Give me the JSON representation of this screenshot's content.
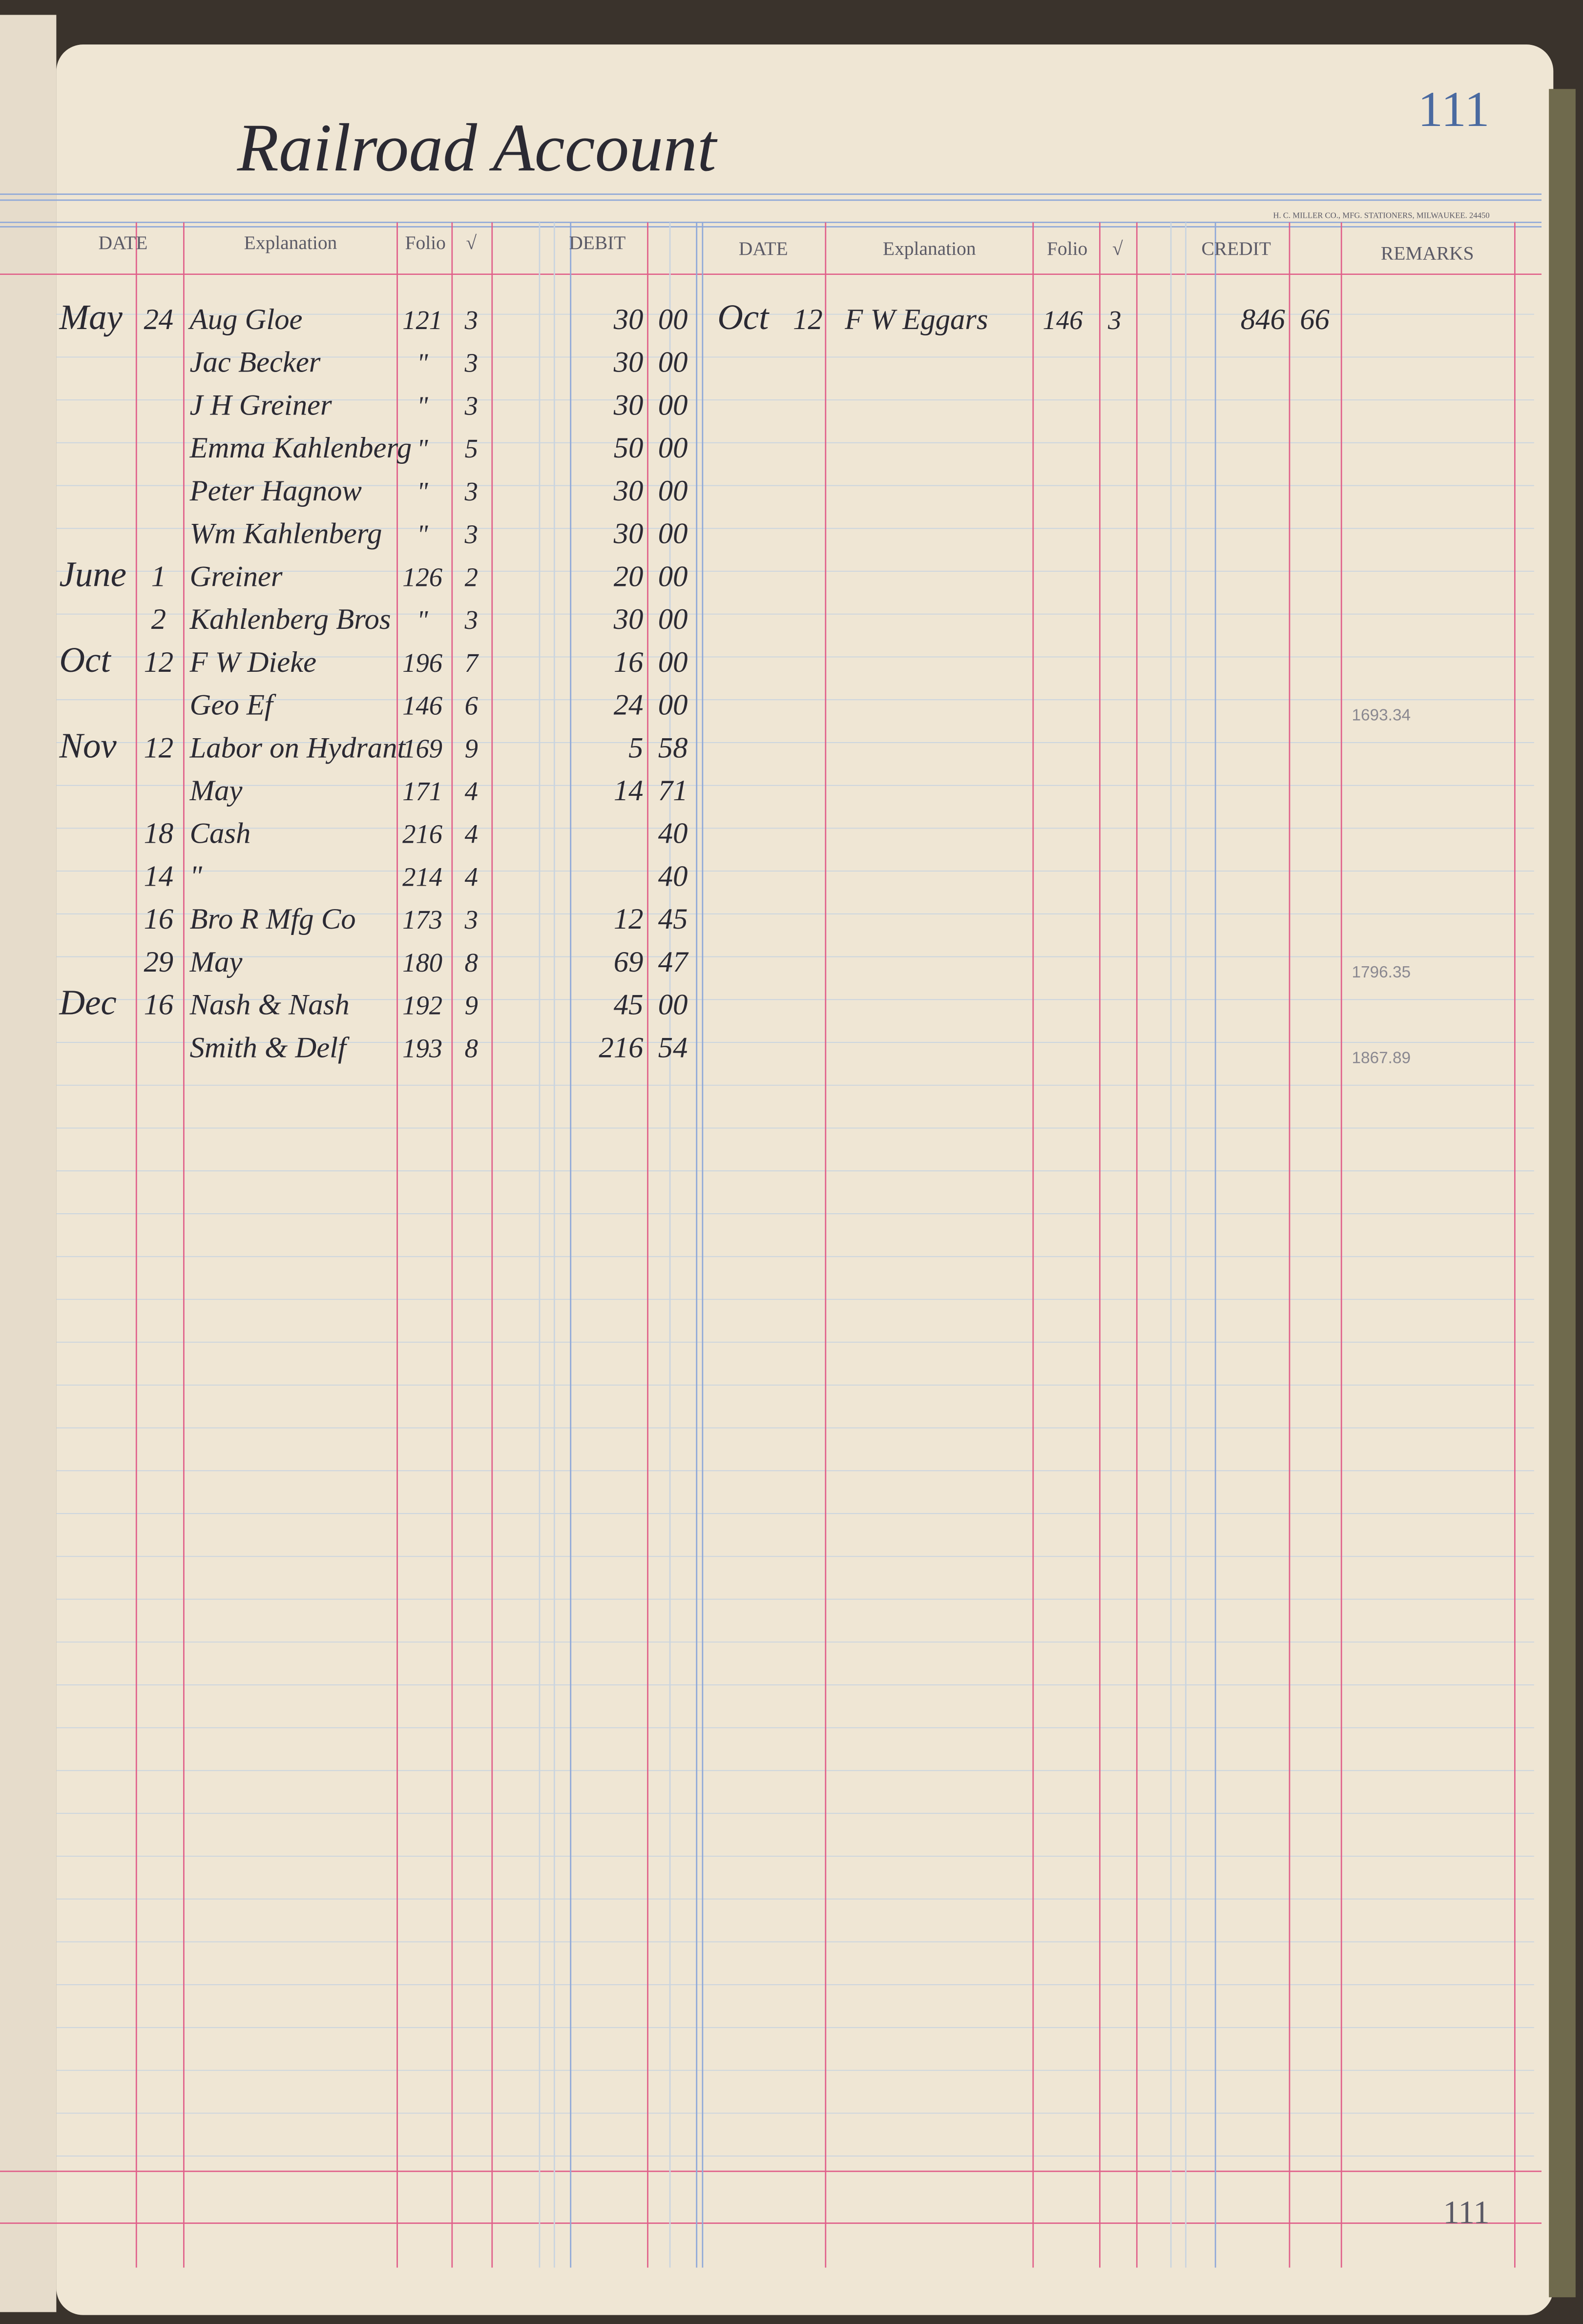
{
  "header": {
    "title": "Railroad Account",
    "page_number": "111",
    "printer": "H. C. MILLER CO., MFG. STATIONERS, MILWAUKEE. 24450"
  },
  "columns": {
    "debit": [
      "DATE",
      "Explanation",
      "Folio",
      "√",
      "DEBIT"
    ],
    "credit": [
      "DATE",
      "Explanation",
      "Folio",
      "√",
      "CREDIT"
    ],
    "remarks": "REMARKS"
  },
  "debit_rows": [
    {
      "month": "May",
      "day": "24",
      "explanation": "Aug Gloe",
      "folio": "121",
      "check": "3",
      "dollars": "30",
      "cents": "00"
    },
    {
      "explanation": "Jac Becker",
      "folio": "\"",
      "check": "3",
      "dollars": "30",
      "cents": "00"
    },
    {
      "explanation": "J H Greiner",
      "folio": "\"",
      "check": "3",
      "dollars": "30",
      "cents": "00"
    },
    {
      "explanation": "Emma Kahlenberg",
      "folio": "\"",
      "check": "5",
      "dollars": "50",
      "cents": "00"
    },
    {
      "explanation": "Peter Hagnow",
      "folio": "\"",
      "check": "3",
      "dollars": "30",
      "cents": "00"
    },
    {
      "explanation": "Wm Kahlenberg",
      "folio": "\"",
      "check": "3",
      "dollars": "30",
      "cents": "00"
    },
    {
      "month": "June",
      "day": "1",
      "explanation": "Greiner",
      "folio": "126",
      "check": "2",
      "dollars": "20",
      "cents": "00"
    },
    {
      "day": "2",
      "explanation": "Kahlenberg Bros",
      "folio": "\"",
      "check": "3",
      "dollars": "30",
      "cents": "00"
    },
    {
      "month": "Oct",
      "day": "12",
      "explanation": "F W Dieke",
      "folio": "196",
      "check": "7",
      "dollars": "16",
      "cents": "00"
    },
    {
      "explanation": "Geo Ef",
      "folio": "146",
      "check": "6",
      "dollars": "24",
      "cents": "00",
      "remarks": "1693.34"
    },
    {
      "month": "Nov",
      "day": "12",
      "explanation": "Labor on Hydrant",
      "folio": "169",
      "check": "9",
      "dollars": "5",
      "cents": "58"
    },
    {
      "explanation": "May",
      "folio": "171",
      "check": "4",
      "dollars": "14",
      "cents": "71"
    },
    {
      "day": "18",
      "explanation": "Cash",
      "folio": "216",
      "check": "4",
      "cents": "40"
    },
    {
      "day": "14",
      "explanation": "\"",
      "folio": "214",
      "check": "4",
      "cents": "40"
    },
    {
      "day": "16",
      "explanation": "Bro R Mfg Co",
      "folio": "173",
      "check": "3",
      "dollars": "12",
      "cents": "45"
    },
    {
      "day": "29",
      "explanation": "May",
      "folio": "180",
      "check": "8",
      "dollars": "69",
      "cents": "47",
      "remarks": "1796.35"
    },
    {
      "month": "Dec",
      "day": "16",
      "explanation": "Nash & Nash",
      "folio": "192",
      "check": "9",
      "dollars": "45",
      "cents": "00"
    },
    {
      "explanation": "Smith & Delf",
      "folio": "193",
      "check": "8",
      "dollars": "216",
      "cents": "54",
      "remarks": "1867.89"
    }
  ],
  "credit_rows": [
    {
      "month": "Oct",
      "day": "12",
      "explanation": "F W Eggars",
      "folio": "146",
      "check": "3",
      "dollars": "846",
      "cents": "66"
    }
  ]
}
